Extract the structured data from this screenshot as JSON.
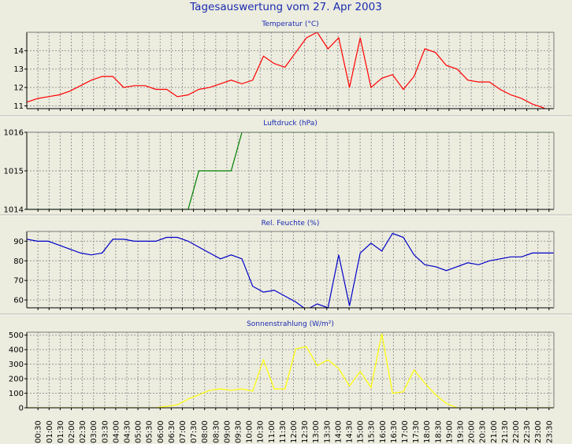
{
  "title": "Tagesauswertung vom 27. Apr 2003",
  "colors": {
    "title": "#1a2bb0",
    "background": "#ececdf"
  },
  "x_ticks": [
    "00:30",
    "01:00",
    "01:30",
    "02:00",
    "02:30",
    "03:00",
    "03:30",
    "04:00",
    "04:30",
    "05:00",
    "05:30",
    "06:00",
    "06:30",
    "07:00",
    "07:30",
    "08:00",
    "08:30",
    "09:00",
    "09:30",
    "10:00",
    "10:30",
    "11:00",
    "11:30",
    "12:00",
    "12:30",
    "13:00",
    "13:30",
    "14:00",
    "14:30",
    "15:00",
    "15:30",
    "16:00",
    "16:30",
    "17:00",
    "17:30",
    "18:00",
    "18:30",
    "19:00",
    "19:30",
    "20:00",
    "20:30",
    "21:00",
    "21:30",
    "22:00",
    "22:30",
    "23:00",
    "23:30"
  ],
  "chart_data": [
    {
      "type": "line",
      "title": "Temperatur (°C)",
      "color": "#ff0000",
      "ylim": [
        10.85,
        15.0
      ],
      "yticks": [
        11,
        12,
        13,
        14
      ],
      "grid": true,
      "values": [
        11.2,
        11.4,
        11.5,
        11.6,
        11.8,
        12.1,
        12.4,
        12.6,
        12.6,
        12.0,
        12.1,
        12.1,
        11.9,
        11.9,
        11.5,
        11.6,
        11.9,
        12.0,
        12.2,
        12.4,
        12.2,
        12.4,
        13.7,
        13.3,
        13.1,
        13.9,
        14.7,
        15.0,
        14.1,
        14.7,
        12.0,
        14.7,
        12.0,
        12.5,
        12.7,
        11.9,
        12.6,
        14.1,
        13.9,
        13.2,
        13.0,
        12.4,
        12.3,
        12.3,
        11.9,
        11.6,
        11.4,
        11.1,
        10.9,
        10.6
      ]
    },
    {
      "type": "line",
      "title": "Luftdruck (hPa)",
      "color": "#008000",
      "ylim": [
        1014.0,
        1016.0
      ],
      "yticks": [
        1014,
        1015,
        1016
      ],
      "grid": true,
      "values": [
        1014,
        1014,
        1014,
        1014,
        1014,
        1014,
        1014,
        1014,
        1014,
        1014,
        1014,
        1014,
        1014,
        1014,
        1014,
        1014,
        1015,
        1015,
        1015,
        1015,
        1016,
        1016,
        1016,
        1016,
        1016,
        1016,
        1016,
        1016,
        1016,
        1016,
        1016,
        1016,
        1016,
        1016,
        1016,
        1016,
        1016,
        1016,
        1016,
        1016,
        1016,
        1016,
        1016,
        1016,
        1016,
        1016,
        1016,
        1016,
        1016,
        1016
      ]
    },
    {
      "type": "line",
      "title": "Rel. Feuchte (%)",
      "color": "#0000c8",
      "ylim": [
        56,
        95
      ],
      "yticks": [
        60,
        70,
        80,
        90
      ],
      "grid": true,
      "values": [
        91,
        90,
        90,
        88,
        86,
        84,
        83,
        84,
        91,
        91,
        90,
        90,
        90,
        92,
        92,
        90,
        87,
        84,
        81,
        83,
        81,
        67,
        64,
        65,
        62,
        59,
        55,
        58,
        56,
        83,
        57,
        84,
        89,
        85,
        94,
        92,
        83,
        78,
        77,
        75,
        77,
        79,
        78,
        80,
        81,
        82,
        82,
        84,
        84,
        84
      ]
    },
    {
      "type": "line",
      "title": "Sonnenstrahlung (W/m²)",
      "color": "#ffff00",
      "ylim": [
        0,
        520
      ],
      "yticks": [
        0,
        100,
        200,
        300,
        400,
        500
      ],
      "grid": true,
      "values": [
        0,
        0,
        0,
        0,
        0,
        0,
        0,
        0,
        0,
        0,
        0,
        0,
        0,
        10,
        20,
        60,
        90,
        120,
        130,
        120,
        130,
        115,
        330,
        130,
        130,
        405,
        420,
        290,
        330,
        270,
        150,
        250,
        140,
        510,
        100,
        110,
        260,
        170,
        90,
        30,
        0,
        0,
        0,
        0,
        0,
        0,
        0,
        0,
        0,
        0
      ]
    }
  ]
}
